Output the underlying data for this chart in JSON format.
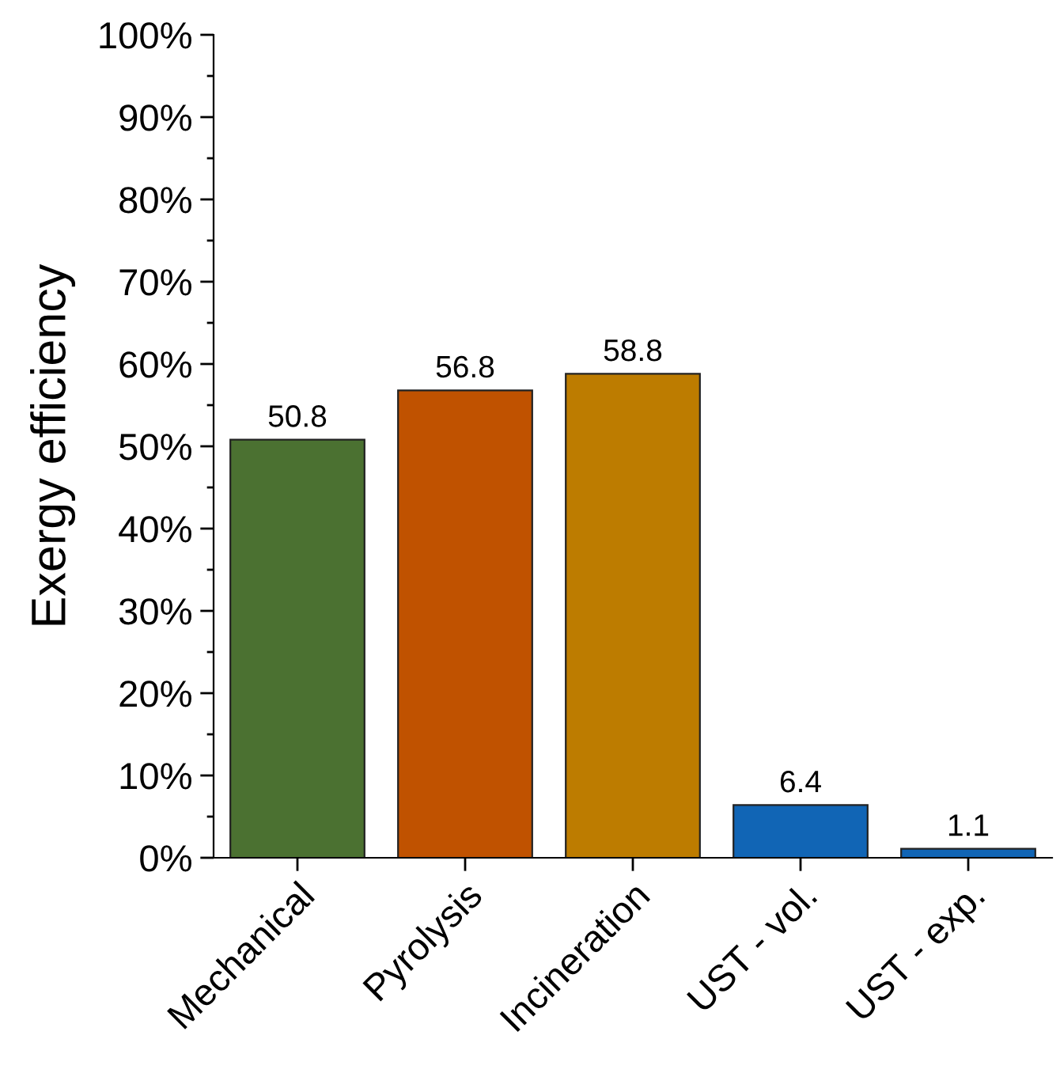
{
  "chart_data": {
    "type": "bar",
    "ylabel": "Exergy efficiency",
    "categories": [
      "Mechanical",
      "Pyrolysis",
      "Incineration",
      "UST - vol.",
      "UST - exp."
    ],
    "values": [
      50.8,
      56.8,
      58.8,
      6.4,
      1.1
    ],
    "colors": [
      "#4b7131",
      "#c05200",
      "#bd7c00",
      "#1165b5",
      "#1165b5"
    ],
    "ylim": [
      0,
      100
    ],
    "yticks": [
      {
        "value": 0,
        "label": "0%"
      },
      {
        "value": 10,
        "label": "10%"
      },
      {
        "value": 20,
        "label": "20%"
      },
      {
        "value": 30,
        "label": "30%"
      },
      {
        "value": 40,
        "label": "40%"
      },
      {
        "value": 50,
        "label": "50%"
      },
      {
        "value": 60,
        "label": "60%"
      },
      {
        "value": 70,
        "label": "70%"
      },
      {
        "value": 80,
        "label": "80%"
      },
      {
        "value": 90,
        "label": "90%"
      },
      {
        "value": 100,
        "label": "100%"
      }
    ],
    "data_labels": true,
    "grid": false,
    "legend": false
  }
}
